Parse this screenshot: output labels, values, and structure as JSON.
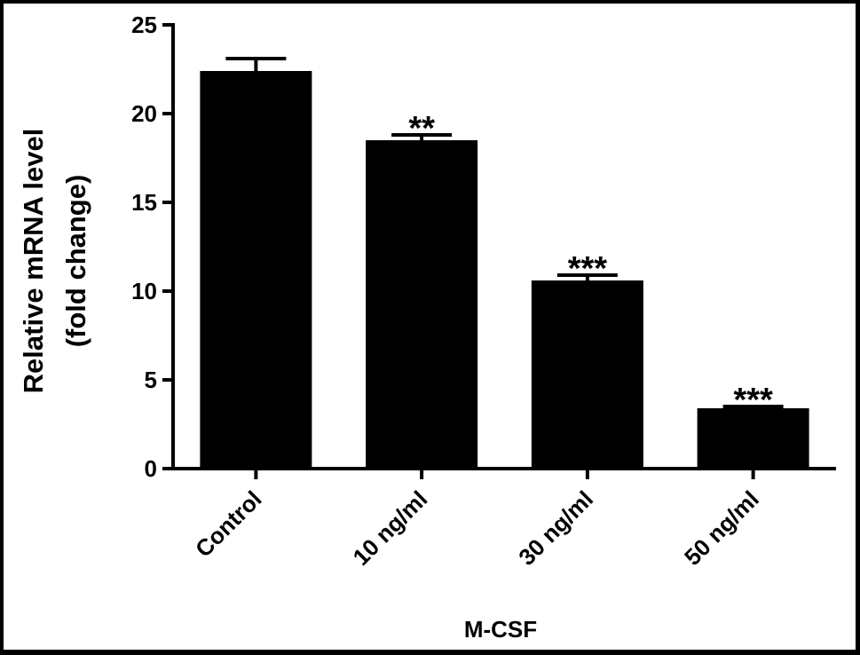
{
  "chart_data": {
    "type": "bar",
    "categories": [
      "Control",
      "10 ng/ml",
      "30 ng/ml",
      "50 ng/ml"
    ],
    "values": [
      22.4,
      18.5,
      10.6,
      3.4
    ],
    "errors": [
      0.7,
      0.3,
      0.3,
      0.1
    ],
    "annotations": [
      "",
      "**",
      "***",
      "***"
    ],
    "xlabel": "M-CSF",
    "ylabel_lines": [
      "Relative mRNA level",
      "(fold change)"
    ],
    "ylim": [
      0,
      25
    ],
    "yticks": [
      0,
      5,
      10,
      15,
      20,
      25
    ],
    "bar_color": "#000000",
    "grid": false
  }
}
